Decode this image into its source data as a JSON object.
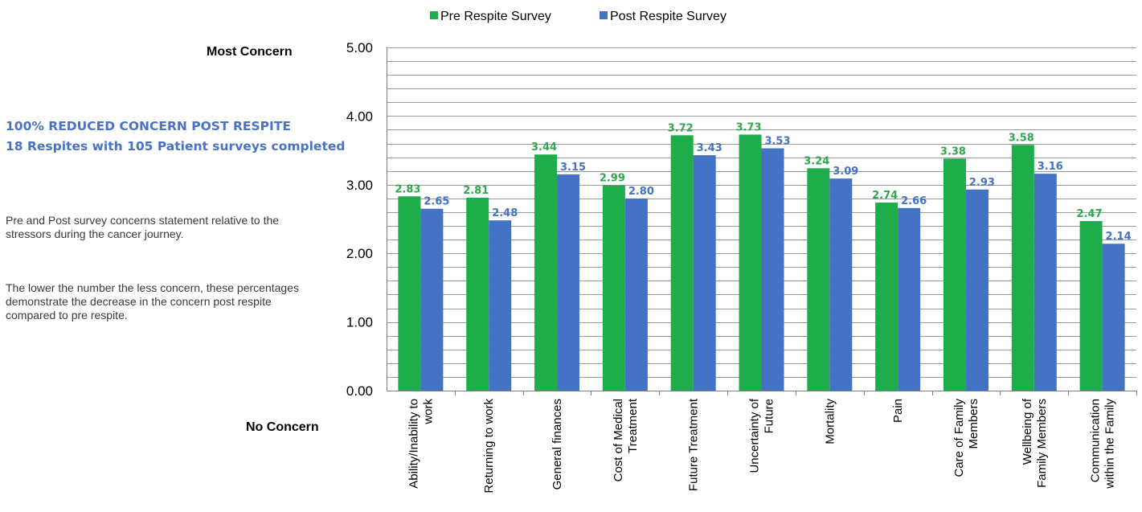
{
  "side": {
    "most_concern": "Most Concern",
    "no_concern": "No Concern",
    "headline_1": "100% REDUCED CONCERN POST RESPITE",
    "headline_2": "18 Respites with 105 Patient surveys completed",
    "note_1": "Pre and Post survey concerns statement relative to the stressors during the cancer journey.",
    "note_2": "The lower the number the less concern, these percentages demonstrate the decrease in the concern post respite compared to pre respite."
  },
  "colors": {
    "pre": "#1fac4b",
    "post": "#4472c4",
    "pre_label": "#2fa84f",
    "post_label": "#4472c4",
    "headline": "#4a72c4"
  },
  "chart_data": {
    "type": "bar",
    "categories": [
      [
        "Ability/Inability to",
        "work"
      ],
      [
        "Returning to work"
      ],
      [
        "General finances"
      ],
      [
        "Cost of Medical",
        "Treatment"
      ],
      [
        "Future Treatment"
      ],
      [
        "Uncertainty of",
        "Future"
      ],
      [
        "Mortality"
      ],
      [
        "Pain"
      ],
      [
        "Care of Family",
        "Members"
      ],
      [
        "Wellbeing of",
        "Family Members"
      ],
      [
        "Communication",
        "within the Family"
      ]
    ],
    "series": [
      {
        "name": "Pre Respite Survey",
        "values": [
          2.83,
          2.81,
          3.44,
          2.99,
          3.72,
          3.73,
          3.24,
          2.74,
          3.38,
          3.58,
          2.47
        ]
      },
      {
        "name": "Post Respite Survey",
        "values": [
          2.65,
          2.48,
          3.15,
          2.8,
          3.43,
          3.53,
          3.09,
          2.66,
          2.93,
          3.16,
          2.14
        ]
      }
    ],
    "ylim": [
      0,
      5
    ],
    "yticks": [
      "0.00",
      "1.00",
      "2.00",
      "3.00",
      "4.00",
      "5.00"
    ],
    "minor_grid_step": 0.2,
    "grid": true,
    "legend": "top-center"
  }
}
